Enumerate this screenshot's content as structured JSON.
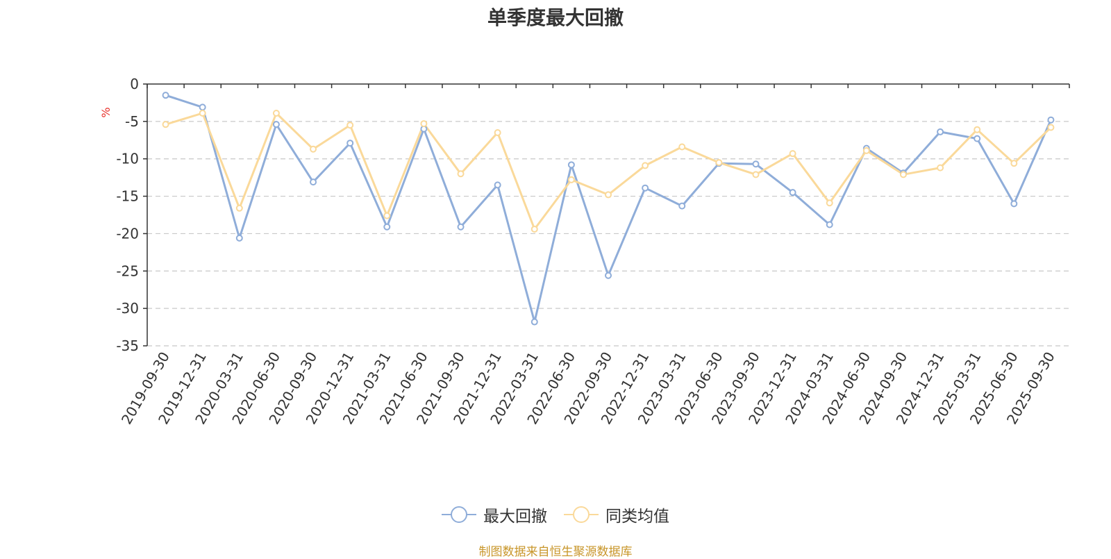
{
  "chart_data": {
    "type": "line",
    "title": "单季度最大回撤",
    "ylabel": "%",
    "ylim": [
      -35,
      0
    ],
    "yticks": [
      0,
      -5,
      -10,
      -15,
      -20,
      -25,
      -30,
      -35
    ],
    "grid": true,
    "legend_position": "bottom",
    "categories": [
      "2019-09-30",
      "2019-12-31",
      "2020-03-31",
      "2020-06-30",
      "2020-09-30",
      "2020-12-31",
      "2021-03-31",
      "2021-06-30",
      "2021-09-30",
      "2021-12-31",
      "2022-03-31",
      "2022-06-30",
      "2022-09-30",
      "2022-12-31",
      "2023-03-31",
      "2023-06-30",
      "2023-09-30",
      "2023-12-31",
      "2024-03-31",
      "2024-06-30",
      "2024-09-30",
      "2024-12-31",
      "2025-03-31",
      "2025-06-30",
      "2025-09-30"
    ],
    "series": [
      {
        "name": "最大回撤",
        "color": "#8fadd9",
        "values": [
          -1.5,
          -3.1,
          -20.6,
          -5.4,
          -13.1,
          -7.9,
          -19.1,
          -6.0,
          -19.1,
          -13.5,
          -31.8,
          -10.8,
          -25.6,
          -13.9,
          -16.3,
          -10.6,
          -10.7,
          -14.5,
          -18.8,
          -8.6,
          -11.9,
          -6.4,
          -7.3,
          -16.0,
          -4.8
        ]
      },
      {
        "name": "同类均值",
        "color": "#fad99a",
        "values": [
          -5.4,
          -3.9,
          -16.6,
          -3.9,
          -8.7,
          -5.5,
          -17.6,
          -5.3,
          -12.0,
          -6.5,
          -19.4,
          -12.8,
          -14.8,
          -10.9,
          -8.4,
          -10.5,
          -12.1,
          -9.3,
          -15.9,
          -8.9,
          -12.1,
          -11.2,
          -6.1,
          -10.6,
          -5.8
        ]
      }
    ]
  },
  "footer": {
    "source": "制图数据来自恒生聚源数据库"
  }
}
